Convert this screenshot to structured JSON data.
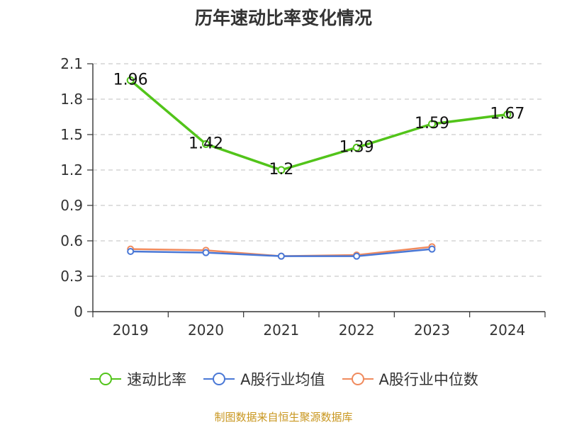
{
  "chart_data": {
    "type": "line",
    "title": "历年速动比率变化情况",
    "categories": [
      "2019",
      "2020",
      "2021",
      "2022",
      "2023",
      "2024"
    ],
    "ylim": [
      0,
      2.1
    ],
    "yticks": [
      "0",
      "0.3",
      "0.6",
      "0.9",
      "1.2",
      "1.5",
      "1.8",
      "2.1"
    ],
    "grid": true,
    "legend_position": "bottom",
    "series": [
      {
        "name": "速动比率",
        "color": "#52c41a",
        "values": [
          1.96,
          1.42,
          1.2,
          1.39,
          1.59,
          1.67
        ],
        "labels": [
          "1.96",
          "1.42",
          "1.2",
          "1.39",
          "1.59",
          "1.67"
        ],
        "show_labels": true
      },
      {
        "name": "A股行业均值",
        "color": "#4a78d6",
        "values": [
          0.51,
          0.5,
          0.47,
          0.47,
          0.53,
          null
        ],
        "show_labels": false
      },
      {
        "name": "A股行业中位数",
        "color": "#f08a5d",
        "values": [
          0.53,
          0.52,
          0.47,
          0.48,
          0.55,
          null
        ],
        "show_labels": false
      }
    ]
  },
  "footer": {
    "source": "制图数据来自恒生聚源数据库"
  }
}
